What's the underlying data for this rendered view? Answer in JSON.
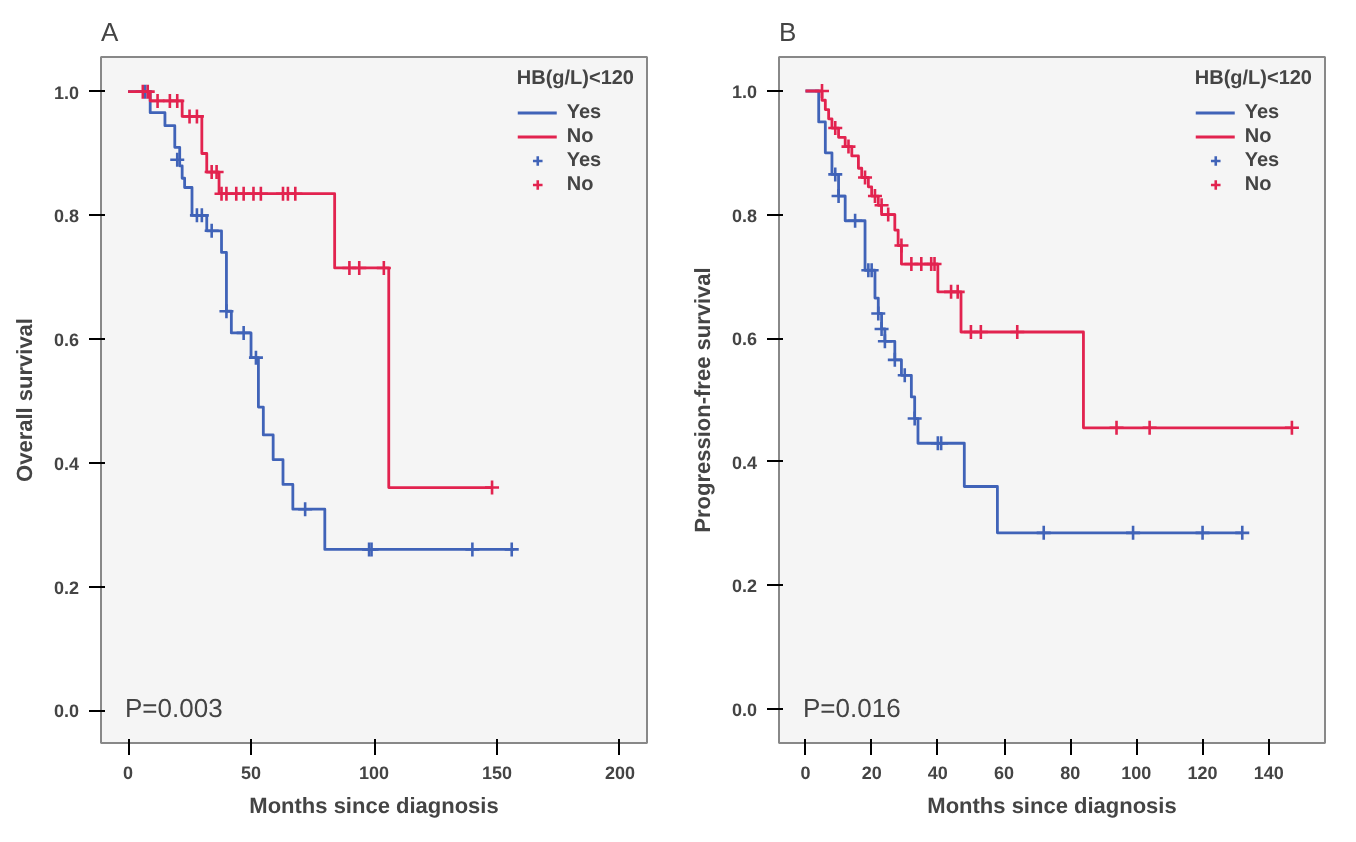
{
  "chart_data": [
    {
      "type": "step",
      "title": "A",
      "xlabel": "Months since diagnosis",
      "ylabel": "Overall survival",
      "legend_title": "HB(g/L)<120",
      "legend": "top right",
      "grid": false,
      "xlim": [
        -11,
        211
      ],
      "xticks": [
        0,
        50,
        100,
        150,
        200
      ],
      "ylim": [
        -0.053,
        1.056
      ],
      "yticks": [
        {
          "value": 0,
          "label": "0.0"
        },
        {
          "value": 0.2,
          "label": "0.2"
        },
        {
          "value": 0.4,
          "label": "0.4"
        },
        {
          "value": 0.6,
          "label": "0.6"
        },
        {
          "value": 0.8,
          "label": "0.8"
        },
        {
          "value": 1,
          "label": "1.0"
        }
      ],
      "annotations": [
        "P=0.003"
      ],
      "series": [
        {
          "name": "Yes",
          "line_style": "solid",
          "color": "#4063b8",
          "x": [
            0,
            9,
            15,
            19,
            21,
            22,
            23,
            26,
            32,
            38,
            40,
            42,
            50,
            53,
            55,
            59,
            63,
            67,
            80,
            157
          ],
          "values": [
            1.0,
            0.966,
            0.945,
            0.91,
            0.88,
            0.86,
            0.845,
            0.8,
            0.775,
            0.74,
            0.645,
            0.61,
            0.57,
            0.49,
            0.445,
            0.405,
            0.365,
            0.325,
            0.26,
            0.26
          ]
        },
        {
          "name": "No",
          "line_style": "solid",
          "color": "#e2234f",
          "x": [
            0,
            9,
            22,
            30,
            32,
            37,
            84,
            106,
            148
          ],
          "values": [
            1.0,
            0.985,
            0.96,
            0.9,
            0.87,
            0.835,
            0.715,
            0.36,
            0.36
          ]
        },
        {
          "name": "Yes",
          "type": "scatter",
          "marker": "cross",
          "color": "#4063b8",
          "x": [
            7,
            20,
            28,
            30,
            34,
            40,
            47,
            52,
            72,
            98,
            99,
            140,
            156
          ],
          "values": [
            1.0,
            0.89,
            0.8,
            0.8,
            0.775,
            0.645,
            0.61,
            0.57,
            0.325,
            0.26,
            0.26,
            0.26,
            0.26
          ]
        },
        {
          "name": "No",
          "type": "scatter",
          "marker": "cross",
          "color": "#e2234f",
          "x": [
            6,
            8,
            12,
            17,
            20,
            25,
            28,
            34,
            36,
            38,
            40,
            44,
            47,
            51,
            54,
            63,
            65,
            68,
            90,
            94,
            104,
            148
          ],
          "values": [
            1.0,
            1.0,
            0.985,
            0.985,
            0.985,
            0.96,
            0.96,
            0.87,
            0.87,
            0.835,
            0.835,
            0.835,
            0.835,
            0.835,
            0.835,
            0.835,
            0.835,
            0.835,
            0.715,
            0.715,
            0.715,
            0.36
          ]
        }
      ]
    },
    {
      "type": "step",
      "title": "B",
      "xlabel": "Months since diagnosis",
      "ylabel": "Progression-free survival",
      "legend_title": "HB(g/L)<120",
      "legend": "top right",
      "grid": false,
      "xlim": [
        -8,
        157
      ],
      "xticks": [
        0,
        20,
        40,
        60,
        80,
        100,
        120,
        140
      ],
      "ylim": [
        -0.055,
        1.055
      ],
      "yticks": [
        {
          "value": 0,
          "label": "0.0"
        },
        {
          "value": 0.2,
          "label": "0.2"
        },
        {
          "value": 0.4,
          "label": "0.4"
        },
        {
          "value": 0.6,
          "label": "0.6"
        },
        {
          "value": 0.8,
          "label": "0.8"
        },
        {
          "value": 1,
          "label": "1.0"
        }
      ],
      "annotations": [
        "P=0.016"
      ],
      "series": [
        {
          "name": "Yes",
          "line_style": "solid",
          "color": "#4063b8",
          "x": [
            0,
            4,
            6,
            8,
            10,
            12,
            18,
            21,
            22,
            23,
            24,
            27,
            29,
            32,
            33,
            34,
            48,
            58,
            132
          ],
          "values": [
            1.0,
            0.95,
            0.9,
            0.865,
            0.83,
            0.79,
            0.71,
            0.665,
            0.64,
            0.615,
            0.595,
            0.565,
            0.54,
            0.505,
            0.47,
            0.43,
            0.36,
            0.285,
            0.285
          ]
        },
        {
          "name": "No",
          "line_style": "solid",
          "color": "#e2234f",
          "x": [
            0,
            5,
            6,
            7,
            8,
            10,
            12,
            14,
            16,
            17,
            19,
            20,
            22,
            23,
            27,
            28,
            29,
            40,
            47,
            84,
            147
          ],
          "values": [
            1.0,
            0.985,
            0.97,
            0.955,
            0.94,
            0.925,
            0.91,
            0.895,
            0.875,
            0.86,
            0.845,
            0.83,
            0.815,
            0.8,
            0.775,
            0.75,
            0.72,
            0.675,
            0.61,
            0.455,
            0.455
          ]
        },
        {
          "name": "Yes",
          "type": "scatter",
          "marker": "cross",
          "color": "#4063b8",
          "x": [
            9,
            10,
            15,
            19,
            20,
            22,
            23,
            24,
            27,
            30,
            33,
            40,
            41,
            72,
            99,
            120,
            132
          ],
          "values": [
            0.865,
            0.83,
            0.79,
            0.71,
            0.71,
            0.64,
            0.615,
            0.595,
            0.565,
            0.54,
            0.47,
            0.43,
            0.43,
            0.285,
            0.285,
            0.285,
            0.285
          ]
        },
        {
          "name": "No",
          "type": "scatter",
          "marker": "cross",
          "color": "#e2234f",
          "x": [
            5,
            9,
            13,
            18,
            21,
            23,
            25,
            29,
            32,
            35,
            38,
            39,
            44,
            46,
            50,
            53,
            64,
            94,
            104,
            147
          ],
          "values": [
            1.0,
            0.94,
            0.91,
            0.86,
            0.83,
            0.815,
            0.8,
            0.75,
            0.72,
            0.72,
            0.72,
            0.72,
            0.675,
            0.675,
            0.61,
            0.61,
            0.61,
            0.455,
            0.455,
            0.455
          ]
        }
      ]
    }
  ]
}
